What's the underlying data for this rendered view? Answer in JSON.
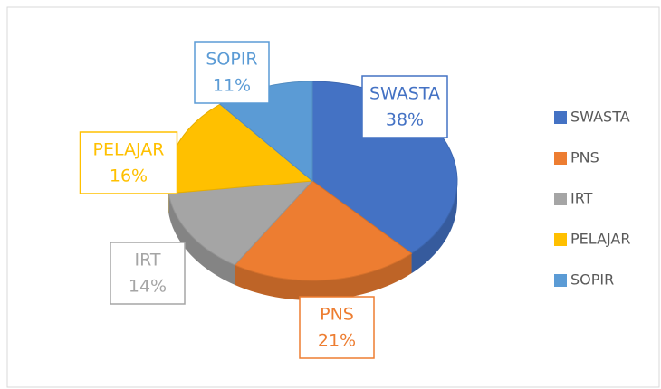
{
  "chart_data": {
    "type": "pie3d",
    "categories": [
      "SWASTA",
      "PNS",
      "IRT",
      "PELAJAR",
      "SOPIR"
    ],
    "values": [
      38,
      21,
      14,
      16,
      11
    ],
    "value_labels": [
      "38%",
      "21%",
      "14%",
      "16%",
      "11%"
    ],
    "colors": [
      "#4472c4",
      "#ed7d31",
      "#a5a5a5",
      "#ffc000",
      "#5b9bd5"
    ],
    "legend": "right"
  }
}
